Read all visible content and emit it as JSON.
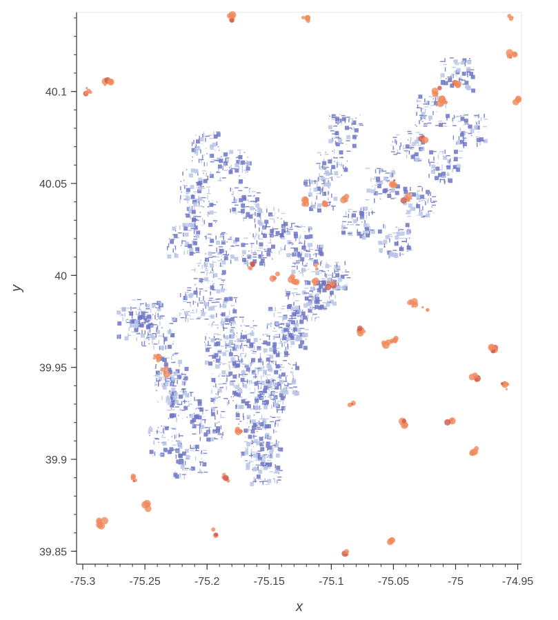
{
  "chart_data": {
    "type": "scatter",
    "title": "",
    "xlabel": "x",
    "ylabel": "y",
    "xlim": [
      -75.305,
      -74.947
    ],
    "ylim": [
      39.843,
      40.143
    ],
    "x_ticks": [
      -75.3,
      -75.25,
      -75.2,
      -75.15,
      -75.1,
      -75.05,
      -75,
      -74.95
    ],
    "x_tick_labels": [
      "-75.3",
      "-75.25",
      "-75.2",
      "-75.15",
      "-75.1",
      "-75.05",
      "-75",
      "-74.95"
    ],
    "y_ticks": [
      39.85,
      39.9,
      39.95,
      40,
      40.05,
      40.1
    ],
    "y_tick_labels": [
      "39.85",
      "39.9",
      "39.95",
      "40",
      "40.05",
      "40.1"
    ],
    "x_minor_step": 0.01,
    "y_minor_step": 0.01,
    "grid": false,
    "legend": "none",
    "colors": {
      "streets_dark": "#6e76c4",
      "streets_light": "#b9c5e6",
      "patches": "#f08a5d",
      "patches_dark": "#d0584a",
      "axis": "#333333",
      "frame": "#e6e6e6"
    },
    "series": [
      {
        "values_kind": "streets",
        "points": [
          [
            -75.17,
            39.955
          ],
          [
            -75.16,
            39.945
          ],
          [
            -75.15,
            39.935
          ],
          [
            -75.165,
            39.925
          ],
          [
            -75.155,
            39.915
          ],
          [
            -75.16,
            39.905
          ],
          [
            -75.145,
            39.96
          ],
          [
            -75.14,
            39.975
          ],
          [
            -75.13,
            39.97
          ],
          [
            -75.125,
            39.985
          ],
          [
            -75.11,
            39.99
          ],
          [
            -75.1,
            40.0
          ],
          [
            -75.2,
            40.0
          ],
          [
            -75.22,
            40.02
          ],
          [
            -75.21,
            40.05
          ],
          [
            -75.2,
            40.07
          ],
          [
            -75.17,
            40.04
          ],
          [
            -75.15,
            40.03
          ],
          [
            -75.13,
            40.02
          ],
          [
            -75.08,
            40.03
          ],
          [
            -75.06,
            40.05
          ],
          [
            -75.04,
            40.07
          ],
          [
            -75.02,
            40.09
          ],
          [
            -75.0,
            40.11
          ],
          [
            -75.24,
            39.97
          ],
          [
            -75.23,
            39.95
          ],
          [
            -75.22,
            39.93
          ],
          [
            -75.235,
            39.91
          ],
          [
            -75.25,
            39.98
          ],
          [
            -75.26,
            39.975
          ],
          [
            -75.21,
            39.985
          ],
          [
            -75.19,
            39.98
          ],
          [
            -75.05,
            40.02
          ],
          [
            -75.03,
            40.04
          ],
          [
            -75.01,
            40.06
          ],
          [
            -74.99,
            40.08
          ],
          [
            -75.1,
            40.06
          ],
          [
            -75.09,
            40.08
          ],
          [
            -75.11,
            40.045
          ],
          [
            -75.18,
            40.06
          ],
          [
            -75.205,
            40.035
          ],
          [
            -75.19,
            40.015
          ],
          [
            -75.16,
            40.015
          ],
          [
            -75.12,
            40.01
          ],
          [
            -75.185,
            39.94
          ],
          [
            -75.19,
            39.96
          ],
          [
            -75.175,
            39.97
          ],
          [
            -75.14,
            39.945
          ],
          [
            -75.155,
            39.895
          ],
          [
            -75.2,
            39.92
          ],
          [
            -75.215,
            39.9
          ],
          [
            -75.23,
            39.94
          ]
        ]
      },
      {
        "values_kind": "patches",
        "points": [
          [
            -75.115,
            39.995
          ],
          [
            -75.1,
            39.995
          ],
          [
            -75.13,
            39.998
          ],
          [
            -75.11,
            40.005
          ],
          [
            -75.165,
            40.005
          ],
          [
            -75.145,
            40.0
          ],
          [
            -75.12,
            40.04
          ],
          [
            -75.105,
            40.038
          ],
          [
            -75.09,
            40.042
          ],
          [
            -75.05,
            40.05
          ],
          [
            -75.025,
            40.075
          ],
          [
            -75.01,
            40.095
          ],
          [
            -75.015,
            40.1
          ],
          [
            -75.0,
            40.105
          ],
          [
            -75.04,
            40.042
          ],
          [
            -75.24,
            39.955
          ],
          [
            -75.235,
            39.948
          ],
          [
            -75.185,
            39.89
          ],
          [
            -75.175,
            39.915
          ],
          [
            -75.085,
            39.93
          ],
          [
            -75.04,
            39.92
          ],
          [
            -75.035,
            39.985
          ],
          [
            -75.025,
            39.982
          ],
          [
            -74.985,
            39.945
          ],
          [
            -74.96,
            39.94
          ],
          [
            -74.97,
            39.96
          ],
          [
            -75.285,
            39.865
          ],
          [
            -75.28,
            40.105
          ],
          [
            -75.295,
            40.1
          ],
          [
            -75.18,
            40.14
          ],
          [
            -75.12,
            40.14
          ],
          [
            -74.955,
            40.14
          ],
          [
            -74.955,
            40.12
          ],
          [
            -74.95,
            40.095
          ],
          [
            -75.055,
            39.962
          ],
          [
            -75.05,
            39.965
          ],
          [
            -74.985,
            39.905
          ],
          [
            -75.26,
            39.89
          ],
          [
            -75.25,
            39.875
          ],
          [
            -75.09,
            39.85
          ],
          [
            -75.05,
            39.855
          ],
          [
            -75.195,
            39.86
          ],
          [
            -75.005,
            39.92
          ],
          [
            -75.075,
            39.97
          ]
        ]
      }
    ]
  }
}
